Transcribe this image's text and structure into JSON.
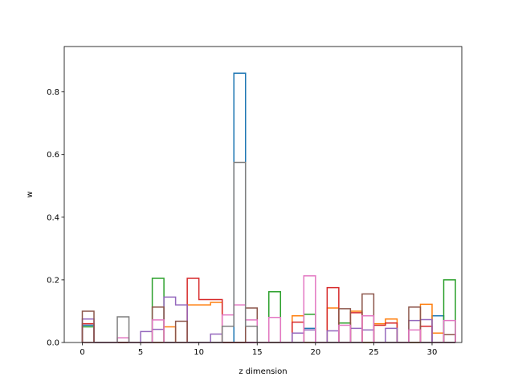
{
  "chart_data": {
    "type": "step-histogram",
    "xlabel": "z dimension",
    "ylabel": "w",
    "xlim": [
      -1.55,
      32.55
    ],
    "ylim": [
      0,
      0.945
    ],
    "xticks": [
      0,
      5,
      10,
      15,
      20,
      25,
      30
    ],
    "yticks": [
      0.0,
      0.2,
      0.4,
      0.6,
      0.8
    ],
    "ytick_labels": [
      "0.0",
      "0.2",
      "0.4",
      "0.6",
      "0.8"
    ],
    "bin_edges_start": 0,
    "bin_width": 1,
    "series": [
      {
        "color": "#1f77b4",
        "values": [
          0.055,
          0.0,
          0.0,
          0.0,
          0.0,
          0.0,
          0.0,
          0.0,
          0.0,
          0.0,
          0.0,
          0.0,
          0.0,
          0.86,
          0.0,
          0.0,
          0.0,
          0.0,
          0.0,
          0.045,
          0.0,
          0.0,
          0.0,
          0.0,
          0.0,
          0.0,
          0.0,
          0.0,
          0.0,
          0.0,
          0.085,
          0.0
        ]
      },
      {
        "color": "#ff7f0e",
        "values": [
          0.0,
          0.0,
          0.0,
          0.0,
          0.0,
          0.0,
          0.0,
          0.05,
          0.0,
          0.12,
          0.12,
          0.128,
          0.0,
          0.0,
          0.0,
          0.0,
          0.0,
          0.0,
          0.085,
          0.0,
          0.0,
          0.11,
          0.0,
          0.1,
          0.0,
          0.06,
          0.075,
          0.0,
          0.0,
          0.122,
          0.03,
          0.0
        ]
      },
      {
        "color": "#2ca02c",
        "values": [
          0.05,
          0.0,
          0.0,
          0.0,
          0.0,
          0.0,
          0.205,
          0.0,
          0.0,
          0.0,
          0.0,
          0.0,
          0.0,
          0.0,
          0.0,
          0.0,
          0.162,
          0.0,
          0.0,
          0.09,
          0.0,
          0.0,
          0.062,
          0.0,
          0.0,
          0.0,
          0.0,
          0.0,
          0.0,
          0.0,
          0.0,
          0.2
        ]
      },
      {
        "color": "#d62728",
        "values": [
          0.06,
          0.0,
          0.0,
          0.0,
          0.0,
          0.0,
          0.0,
          0.0,
          0.0,
          0.205,
          0.137,
          0.137,
          0.0,
          0.0,
          0.0,
          0.0,
          0.0,
          0.0,
          0.065,
          0.0,
          0.0,
          0.175,
          0.0,
          0.095,
          0.0,
          0.055,
          0.062,
          0.0,
          0.0,
          0.052,
          0.0,
          0.0
        ]
      },
      {
        "color": "#9467bd",
        "values": [
          0.075,
          0.0,
          0.0,
          0.0,
          0.0,
          0.035,
          0.042,
          0.145,
          0.12,
          0.0,
          0.0,
          0.027,
          0.0,
          0.0,
          0.0,
          0.0,
          0.0,
          0.0,
          0.03,
          0.04,
          0.0,
          0.037,
          0.0,
          0.045,
          0.04,
          0.0,
          0.045,
          0.0,
          0.07,
          0.073,
          0.0,
          0.0
        ]
      },
      {
        "color": "#8c564b",
        "values": [
          0.1,
          0.0,
          0.0,
          0.0,
          0.0,
          0.0,
          0.113,
          0.0,
          0.068,
          0.0,
          0.0,
          0.0,
          0.0,
          0.0,
          0.11,
          0.0,
          0.0,
          0.0,
          0.0,
          0.0,
          0.0,
          0.0,
          0.108,
          0.0,
          0.155,
          0.0,
          0.0,
          0.0,
          0.113,
          0.0,
          0.0,
          0.025
        ]
      },
      {
        "color": "#e377c2",
        "values": [
          0.0,
          0.0,
          0.0,
          0.015,
          0.0,
          0.0,
          0.072,
          0.0,
          0.0,
          0.0,
          0.0,
          0.0,
          0.088,
          0.12,
          0.072,
          0.0,
          0.08,
          0.0,
          0.0,
          0.213,
          0.0,
          0.0,
          0.055,
          0.0,
          0.085,
          0.0,
          0.0,
          0.0,
          0.04,
          0.0,
          0.0,
          0.07
        ]
      },
      {
        "color": "#7f7f7f",
        "values": [
          0.0,
          0.0,
          0.0,
          0.082,
          0.0,
          0.0,
          0.0,
          0.0,
          0.0,
          0.0,
          0.0,
          0.0,
          0.052,
          0.575,
          0.052,
          0.0,
          0.0,
          0.0,
          0.0,
          0.0,
          0.0,
          0.0,
          0.0,
          0.0,
          0.0,
          0.0,
          0.0,
          0.0,
          0.0,
          0.0,
          0.0,
          0.0
        ]
      }
    ]
  }
}
